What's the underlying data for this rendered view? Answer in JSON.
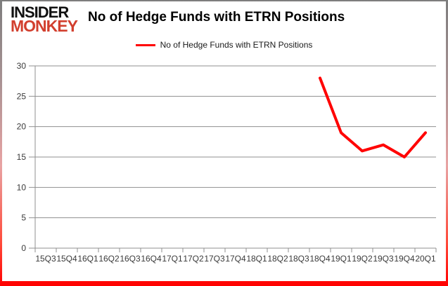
{
  "logo": {
    "line1": "INSIDER",
    "line2": "MONKEY"
  },
  "header": {
    "title": "No of Hedge Funds with ETRN Positions"
  },
  "legend": {
    "label": "No of Hedge Funds with ETRN Positions",
    "line_color": "#ff0000"
  },
  "chart_data": {
    "type": "line",
    "title": "No of Hedge Funds with ETRN Positions",
    "categories": [
      "15Q3",
      "15Q4",
      "16Q1",
      "16Q2",
      "16Q3",
      "16Q4",
      "17Q1",
      "17Q2",
      "17Q3",
      "17Q4",
      "18Q1",
      "18Q2",
      "18Q3",
      "18Q4",
      "19Q1",
      "19Q2",
      "19Q3",
      "19Q4",
      "20Q1"
    ],
    "series": [
      {
        "name": "No of Hedge Funds with ETRN Positions",
        "color": "#ff0000",
        "values": [
          null,
          null,
          null,
          null,
          null,
          null,
          null,
          null,
          null,
          null,
          null,
          null,
          null,
          28,
          19,
          16,
          17,
          15,
          19
        ]
      }
    ],
    "xlabel": "",
    "ylabel": "",
    "ylim": [
      0,
      30
    ],
    "y_ticks": [
      0,
      5,
      10,
      15,
      20,
      25,
      30
    ],
    "grid": "horizontal",
    "legend_position": "top"
  },
  "colors": {
    "accent_red": "#ff0000",
    "logo_red": "#d23f2e",
    "grid": "#8f8f8f",
    "axis_label": "#3a3a3a",
    "border_top": "#7d7d7d",
    "border_bottom": "#ff0000"
  }
}
